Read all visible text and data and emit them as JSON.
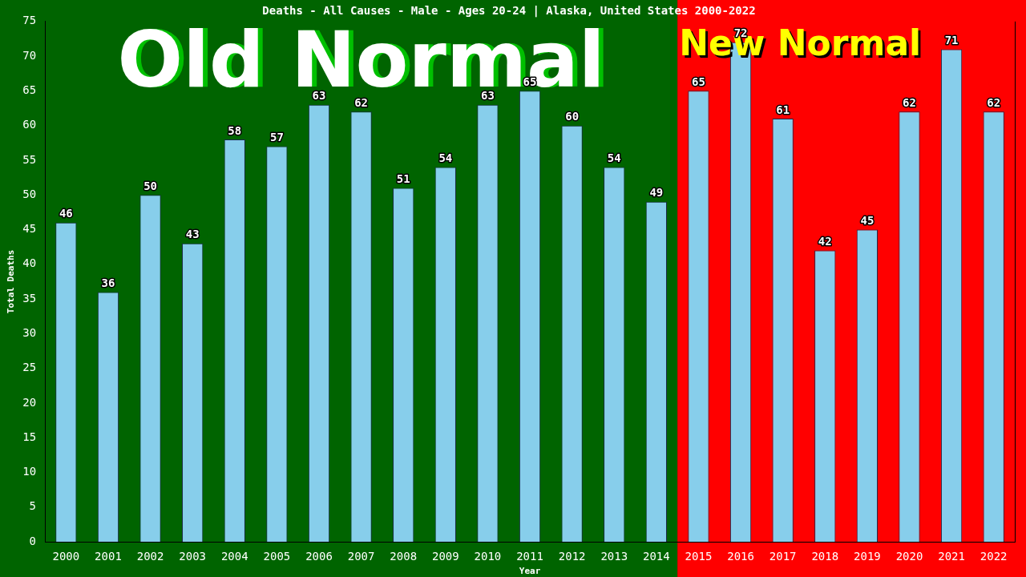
{
  "chart_data": {
    "type": "bar",
    "title": "Deaths - All Causes - Male - Ages 20-24 | Alaska, United States 2000-2022",
    "xlabel": "Year",
    "ylabel": "Total Deaths",
    "categories": [
      "2000",
      "2001",
      "2002",
      "2003",
      "2004",
      "2005",
      "2006",
      "2007",
      "2008",
      "2009",
      "2010",
      "2011",
      "2012",
      "2013",
      "2014",
      "2015",
      "2016",
      "2017",
      "2018",
      "2019",
      "2020",
      "2021",
      "2022"
    ],
    "values": [
      46,
      36,
      50,
      43,
      58,
      57,
      63,
      62,
      51,
      54,
      63,
      65,
      60,
      54,
      49,
      65,
      72,
      61,
      42,
      45,
      62,
      71,
      62
    ],
    "color": "#87ceeb",
    "data_labels": true,
    "ylim": [
      0,
      75
    ],
    "yticks": [
      0,
      5,
      10,
      15,
      20,
      25,
      30,
      35,
      40,
      45,
      50,
      55,
      60,
      65,
      70,
      75
    ],
    "grid": false,
    "legend": false,
    "bands": [
      {
        "axis": "x",
        "from": "2000",
        "to": "2014",
        "label": "Old Normal",
        "color": "#006400"
      },
      {
        "axis": "x",
        "from": "2015",
        "to": "2022",
        "label": "New Normal",
        "color": "#ff0000"
      }
    ]
  }
}
